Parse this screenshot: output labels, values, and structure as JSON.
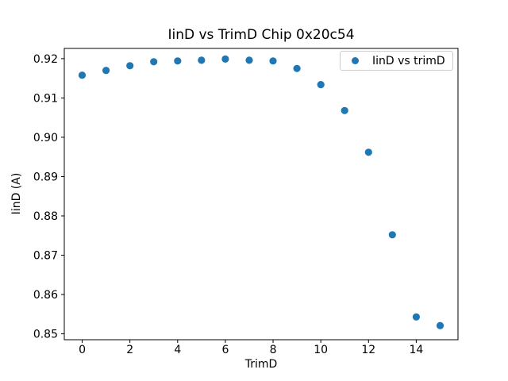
{
  "figure": {
    "background_color": "#ffffff",
    "text_color": "#000000",
    "spine_color": "#000000"
  },
  "chart_data": {
    "type": "scatter",
    "title": "IinD vs TrimD Chip 0x20c54",
    "xlabel": "TrimD",
    "ylabel": "IinD (A)",
    "legend": [
      "IinD vs trimD"
    ],
    "legend_position": "upper right",
    "marker_color": "#1f77b4",
    "grid": false,
    "x": [
      0,
      1,
      2,
      3,
      4,
      5,
      6,
      7,
      8,
      9,
      10,
      11,
      12,
      13,
      14,
      15
    ],
    "y": [
      0.9158,
      0.917,
      0.9182,
      0.9192,
      0.9194,
      0.9196,
      0.9199,
      0.9196,
      0.9194,
      0.9175,
      0.9134,
      0.9068,
      0.8962,
      0.8752,
      0.8543,
      0.8521
    ],
    "xlim": [
      -0.75,
      15.75
    ],
    "ylim": [
      0.8485,
      0.9226
    ],
    "xticks": [
      0,
      2,
      4,
      6,
      8,
      10,
      12,
      14
    ],
    "yticks": [
      0.85,
      0.86,
      0.87,
      0.88,
      0.89,
      0.9,
      0.91,
      0.92
    ]
  }
}
